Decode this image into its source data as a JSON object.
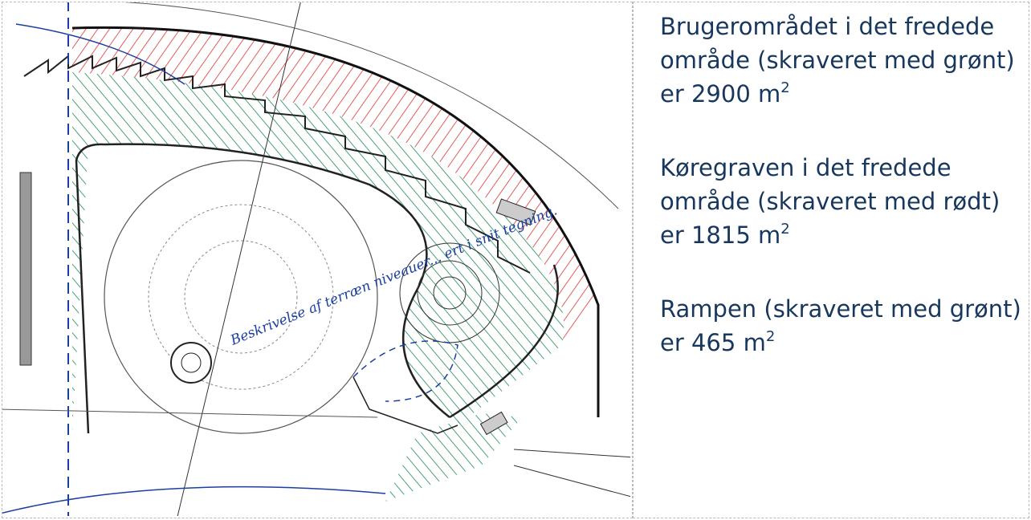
{
  "paragraphs": [
    {
      "text": "Brugerområdet i det fredede område (skraveret med grønt) er 2900",
      "unit": "m",
      "exponent": "2"
    },
    {
      "text": "Køregraven i det fredede område (skraveret med rødt) er 1815",
      "unit": "m",
      "exponent": "2"
    },
    {
      "text": "Rampen (skraveret med grønt) er 465",
      "unit": "m",
      "exponent": "2"
    }
  ],
  "plan": {
    "handwritten_note": "Beskrivelse af terræn niveauer... ert i snit tegning."
  }
}
